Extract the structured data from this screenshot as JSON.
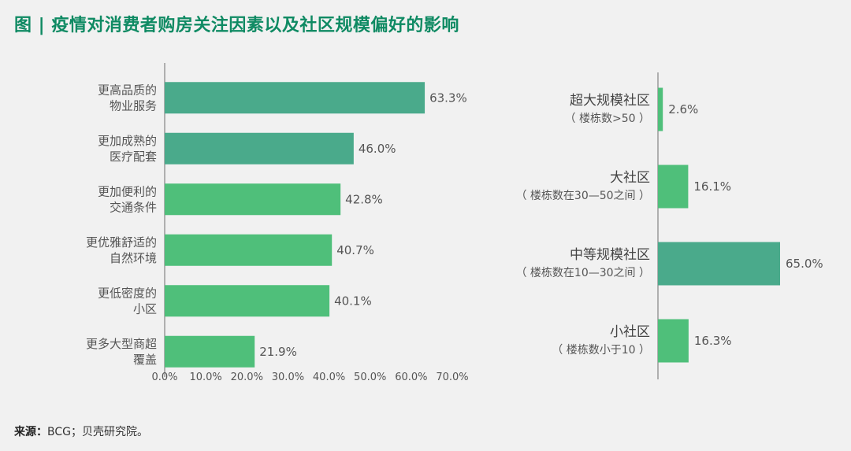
{
  "title": "图 | 疫情对消费者购房关注因素以及社区规模偏好的影响",
  "source": {
    "label": "来源：",
    "text": "BCG；贝壳研究院。"
  },
  "colors": {
    "bar_dark": "#4aaa8b",
    "bar_light": "#4fbf7a",
    "title": "#0f8a63"
  },
  "chart_data": [
    {
      "type": "bar",
      "orientation": "horizontal",
      "categories": [
        [
          "更高品质的",
          "物业服务"
        ],
        [
          "更加成熟的",
          "医疗配套"
        ],
        [
          "更加便利的",
          "交通条件"
        ],
        [
          "更优雅舒适的",
          "自然环境"
        ],
        [
          "更低密度的",
          "小区"
        ],
        [
          "更多大型商超",
          "覆盖"
        ]
      ],
      "values": [
        63.3,
        46.0,
        42.8,
        40.7,
        40.1,
        21.9
      ],
      "value_labels": [
        "63.3%",
        "46.0%",
        "42.8%",
        "40.7%",
        "40.1%",
        "21.9%"
      ],
      "bar_shades": [
        "dark",
        "dark",
        "light",
        "light",
        "light",
        "light"
      ],
      "xlim": [
        0,
        70
      ],
      "ticks": [
        "0.0%",
        "10.0%",
        "20.0%",
        "30.0%",
        "40.0%",
        "50.0%",
        "60.0%",
        "70.0%"
      ]
    },
    {
      "type": "bar",
      "orientation": "horizontal",
      "categories": [
        [
          "超大规模社区",
          "（ 楼栋数>50 ）"
        ],
        [
          "大社区",
          "（ 楼栋数在30—50之间 ）"
        ],
        [
          "中等规模社区",
          "（ 楼栋数在10—30之间 ）"
        ],
        [
          "小社区",
          "（ 楼栋数小于10 ）"
        ]
      ],
      "values": [
        2.6,
        16.1,
        65.0,
        16.3
      ],
      "value_labels": [
        "2.6%",
        "16.1%",
        "65.0%",
        "16.3%"
      ],
      "bar_shades": [
        "light",
        "light",
        "dark",
        "light"
      ],
      "xlim": [
        0,
        65
      ]
    }
  ]
}
